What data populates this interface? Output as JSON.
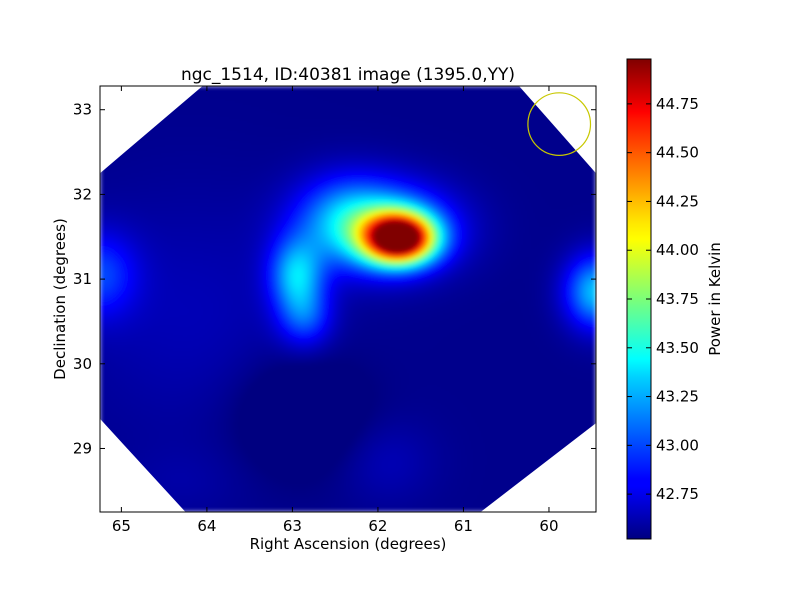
{
  "chart_data": {
    "type": "heatmap",
    "title": "ngc_1514, ID:40381 image (1395.0,YY)",
    "xlabel": "Right Ascension (degrees)",
    "ylabel": "Declination (degrees)",
    "xlim": [
      65.25,
      59.45
    ],
    "ylim": [
      28.25,
      33.28
    ],
    "x_ticks": [
      65,
      64,
      63,
      62,
      61,
      60
    ],
    "x_tick_labels": [
      "65",
      "64",
      "63",
      "62",
      "61",
      "60"
    ],
    "y_ticks": [
      29,
      30,
      31,
      32,
      33
    ],
    "y_tick_labels": [
      "29",
      "30",
      "31",
      "32",
      "33"
    ],
    "colorbar": {
      "label": "Power in Kelvin",
      "range": [
        42.52,
        44.98
      ],
      "ticks": [
        42.75,
        43.0,
        43.25,
        43.5,
        43.75,
        44.0,
        44.25,
        44.5,
        44.75
      ],
      "tick_labels": [
        "42.75",
        "43.00",
        "43.25",
        "43.50",
        "43.75",
        "44.00",
        "44.25",
        "44.50",
        "44.75"
      ],
      "colormap": "jet"
    },
    "background_level": 42.55,
    "sources": [
      {
        "ra": 61.75,
        "dec": 31.48,
        "peak": 44.98,
        "sigma_ra": 0.28,
        "sigma_dec": 0.2
      },
      {
        "ra": 61.95,
        "dec": 31.6,
        "peak": 43.4,
        "sigma_ra": 0.55,
        "sigma_dec": 0.35
      },
      {
        "ra": 62.95,
        "dec": 31.05,
        "peak": 43.25,
        "sigma_ra": 0.22,
        "sigma_dec": 0.3
      },
      {
        "ra": 62.85,
        "dec": 30.55,
        "peak": 42.95,
        "sigma_ra": 0.22,
        "sigma_dec": 0.25
      },
      {
        "ra": 62.4,
        "dec": 31.75,
        "peak": 42.9,
        "sigma_ra": 0.4,
        "sigma_dec": 0.35
      },
      {
        "ra": 59.45,
        "dec": 30.85,
        "peak": 43.3,
        "sigma_ra": 0.25,
        "sigma_dec": 0.3
      },
      {
        "ra": 65.25,
        "dec": 31.05,
        "peak": 42.95,
        "sigma_ra": 0.3,
        "sigma_dec": 0.35
      },
      {
        "ra": 64.2,
        "dec": 30.6,
        "peak": 42.65,
        "sigma_ra": 1.0,
        "sigma_dec": 1.0
      },
      {
        "ra": 61.9,
        "dec": 28.85,
        "peak": 42.65,
        "sigma_ra": 0.4,
        "sigma_dec": 0.35
      },
      {
        "ra": 64.3,
        "dec": 28.6,
        "peak": 42.6,
        "sigma_ra": 0.5,
        "sigma_dec": 0.3
      }
    ],
    "cold_spots": [
      {
        "ra": 62.9,
        "dec": 29.4,
        "depth": 0.2,
        "sigma_ra": 0.5,
        "sigma_dec": 0.45
      }
    ],
    "coverage_octagon": [
      [
        64.05,
        33.28
      ],
      [
        60.35,
        33.28
      ],
      [
        59.45,
        32.25
      ],
      [
        59.45,
        29.3
      ],
      [
        60.8,
        28.25
      ],
      [
        64.25,
        28.25
      ],
      [
        65.25,
        29.35
      ],
      [
        65.25,
        32.25
      ]
    ],
    "beam_circle": {
      "ra": 59.88,
      "dec": 32.83,
      "radius_deg": 0.37,
      "color": "#c8c800"
    }
  }
}
